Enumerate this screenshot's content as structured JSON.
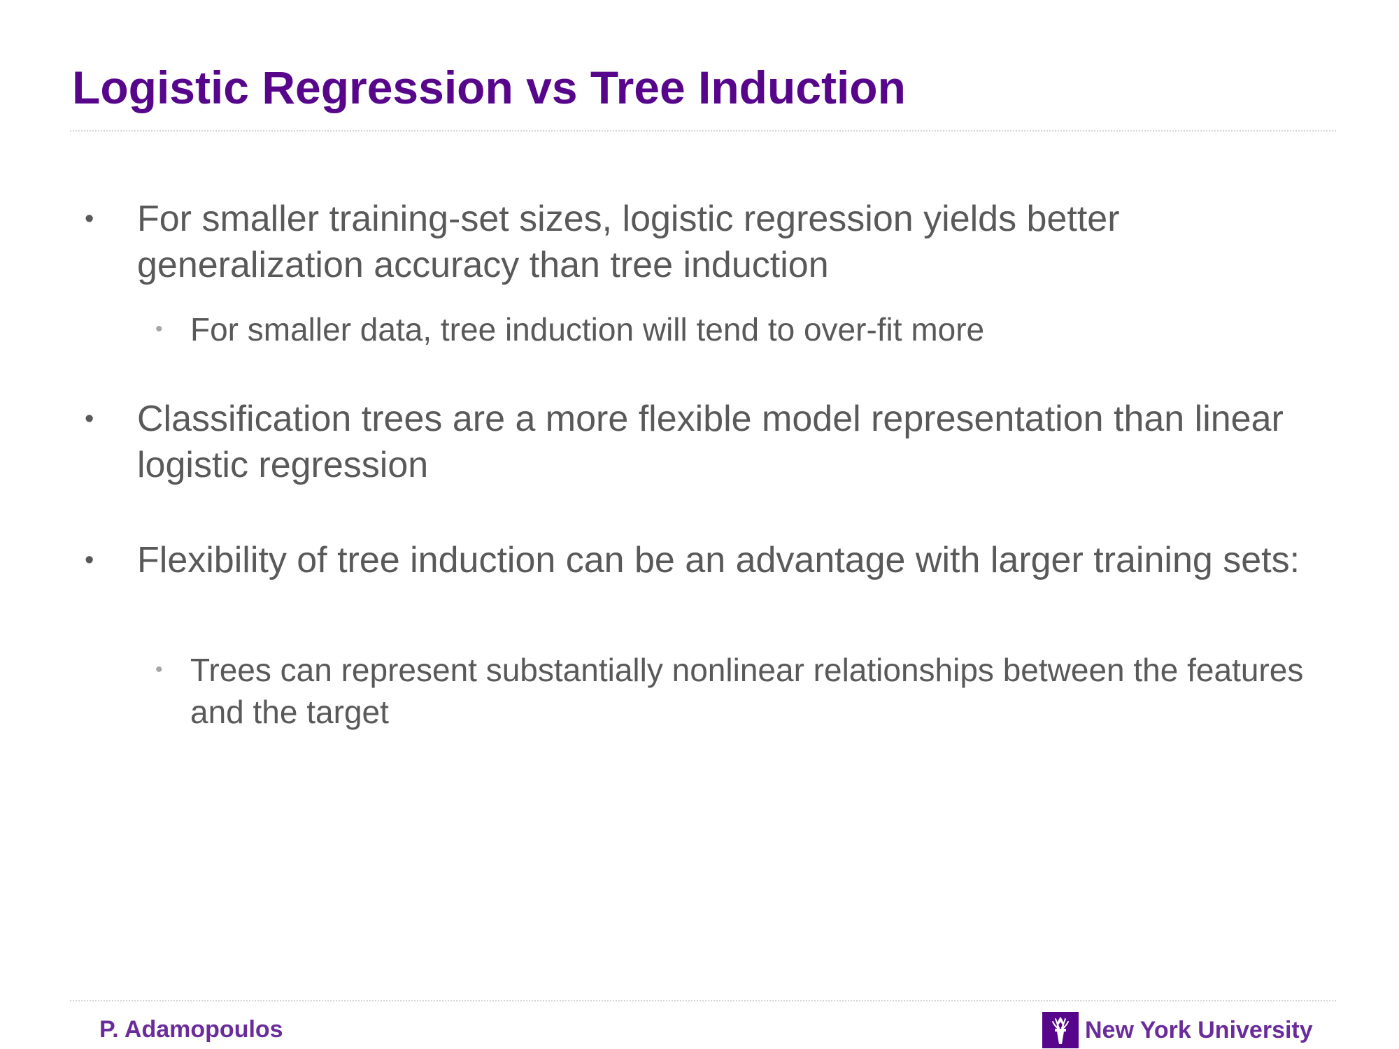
{
  "slide": {
    "title": "Logistic Regression vs Tree Induction",
    "bullet_marker": "•"
  },
  "bullets": [
    {
      "text": "For smaller training-set sizes, logistic regression yields better generalization accuracy than tree induction",
      "sub": [
        {
          "text": "For smaller data, tree induction will tend to over-fit more"
        }
      ]
    },
    {
      "text": "Classification trees are a more flexible model representation than linear logistic regression",
      "sub": []
    },
    {
      "text": "Flexibility of tree induction can be an advantage with larger training sets:",
      "sub": [
        {
          "text": "Trees can represent substantially nonlinear relationships between the features and the target"
        }
      ]
    }
  ],
  "footer": {
    "author": "P. Adamopoulos",
    "organization": "New York University",
    "logo_icon": "nyu-torch-icon"
  },
  "colors": {
    "title": "#57068c",
    "body_text": "#595959",
    "sub_bullet_marker": "#a6a6a6",
    "footer_text": "#6a2c9a",
    "logo_box": "#57068c"
  }
}
